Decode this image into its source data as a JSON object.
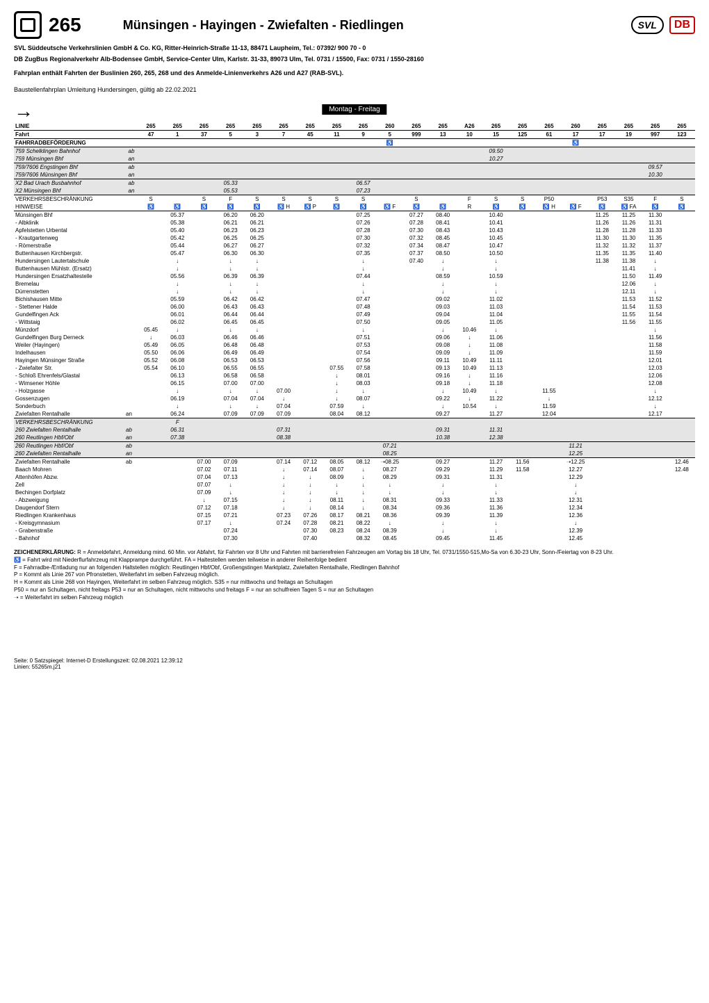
{
  "route_number": "265",
  "route_title": "Münsingen - Hayingen - Zwiefalten - Riedlingen",
  "operator_line1": "SVL Süddeutsche Verkehrslinien GmbH & Co. KG, Ritter-Heinrich-Straße 11-13, 88471 Laupheim, Tel.: 07392/ 900 70 - 0",
  "operator_line2": "DB ZugBus Regionalverkehr Alb-Bodensee GmbH, Service-Center Ulm, Karlstr. 31-33, 89073 Ulm, Tel. 0731 / 15500, Fax: 0731 / 1550-28160",
  "note_line": "Fahrplan enthält Fahrten der Buslinien 260, 265, 268 und des Anmelde-Linienverkehrs A26 und A27 (RAB-SVL).",
  "detour_line": "Baustellenfahrplan Umleitung Hundersingen, gültig ab 22.02.2021",
  "day_header": "Montag - Freitag",
  "line_row_label": "LINIE",
  "fahrt_row_label": "Fahrt",
  "fahrrad_row_label": "FAHRRADBEFÖRDERUNG",
  "verkehr_row_label": "VERKEHRSBESCHRÄNKUNG",
  "hinweise_row_label": "HINWEISE",
  "columns": {
    "line": [
      "265",
      "265",
      "265",
      "265",
      "265",
      "265",
      "265",
      "265",
      "265",
      "260",
      "265",
      "265",
      "A26",
      "265",
      "265",
      "265",
      "260",
      "265",
      "265",
      "265",
      "265"
    ],
    "fahrt": [
      "47",
      "1",
      "37",
      "5",
      "3",
      "7",
      "45",
      "11",
      "9",
      "5",
      "999",
      "13",
      "10",
      "15",
      "125",
      "61",
      "17",
      "17",
      "19",
      "997",
      "123"
    ],
    "bike": [
      "",
      "",
      "",
      "",
      "",
      "",
      "",
      "",
      "",
      "♿",
      "",
      "",
      "",
      "",
      "",
      "",
      "♿",
      "",
      "",
      "",
      ""
    ],
    "verkehr": [
      "S",
      "",
      "S",
      "F",
      "S",
      "S",
      "S",
      "S",
      "S",
      "",
      "S",
      "",
      "F",
      "S",
      "S",
      "P50",
      "",
      "P53",
      "S35",
      "F",
      "S"
    ],
    "hinweise": [
      "♿",
      "♿",
      "♿",
      "♿",
      "♿",
      "♿ H",
      "♿ P",
      "♿",
      "♿",
      "♿ F",
      "♿",
      "♿",
      "R",
      "♿",
      "♿",
      "♿ H",
      "♿ F",
      "♿",
      "♿ FA",
      "♿",
      "♿"
    ]
  },
  "greyblocks": {
    "schelklingen": {
      "stop": "759 Schelklingen Bahnhof",
      "ab": "ab",
      "c13": "09.50"
    },
    "muensingen759": {
      "stop": "759 Münsingen Bhf",
      "ab": "an",
      "c13": "10.27"
    },
    "engstingen": {
      "stop": "759/7606 Engstingen Bhf",
      "ab": "ab",
      "c19": "09.57"
    },
    "muensingen7606": {
      "stop": "759/7606 Münsingen Bhf",
      "ab": "an",
      "c19": "10.30"
    },
    "x2badurach": {
      "stop": "X2 Bad Urach Busbahnhof",
      "ab": "ab",
      "c3": "05.33",
      "c8": "06.57"
    },
    "x2muensingen": {
      "stop": "X2 Münsingen Bhf",
      "ab": "an",
      "c3": "05.53",
      "c8": "07.23"
    }
  },
  "stops": [
    {
      "name": "Münsingen Bhf",
      "t": [
        "",
        "05.37",
        "",
        "06.20",
        "06.20",
        "",
        "",
        "",
        "07.25",
        "",
        "07.27",
        "08.40",
        "",
        "10.40",
        "",
        "",
        "",
        "11.25",
        "11.25",
        "11.30",
        ""
      ]
    },
    {
      "name": "- Albklinik",
      "t": [
        "",
        "05.38",
        "",
        "06.21",
        "06.21",
        "",
        "",
        "",
        "07.26",
        "",
        "07.28",
        "08.41",
        "",
        "10.41",
        "",
        "",
        "",
        "11.26",
        "11.26",
        "11.31",
        ""
      ]
    },
    {
      "name": "Apfelstetten Urbental",
      "t": [
        "",
        "05.40",
        "",
        "06.23",
        "06.23",
        "",
        "",
        "",
        "07.28",
        "",
        "07.30",
        "08.43",
        "",
        "10.43",
        "",
        "",
        "",
        "11.28",
        "11.28",
        "11.33",
        ""
      ]
    },
    {
      "name": "- Krautgartenweg",
      "t": [
        "",
        "05.42",
        "",
        "06.25",
        "06.25",
        "",
        "",
        "",
        "07.30",
        "",
        "07.32",
        "08.45",
        "",
        "10.45",
        "",
        "",
        "",
        "11.30",
        "11.30",
        "11.35",
        ""
      ]
    },
    {
      "name": "- Römerstraße",
      "t": [
        "",
        "05.44",
        "",
        "06.27",
        "06.27",
        "",
        "",
        "",
        "07.32",
        "",
        "07.34",
        "08.47",
        "",
        "10.47",
        "",
        "",
        "",
        "11.32",
        "11.32",
        "11.37",
        ""
      ]
    },
    {
      "name": "Buttenhausen Kirchbergstr.",
      "t": [
        "",
        "05.47",
        "",
        "06.30",
        "06.30",
        "",
        "",
        "",
        "07.35",
        "",
        "07.37",
        "08.50",
        "",
        "10.50",
        "",
        "",
        "",
        "11.35",
        "11.35",
        "11.40",
        ""
      ]
    },
    {
      "name": "Hundersingen Lautertalschule",
      "t": [
        "",
        "↓",
        "",
        "↓",
        "↓",
        "",
        "",
        "",
        "↓",
        "",
        "07.40",
        "↓",
        "",
        "↓",
        "",
        "",
        "",
        "11.38",
        "11.38",
        "↓",
        ""
      ]
    },
    {
      "name": "Buttenhausen Mühlstr. (Ersatz)",
      "t": [
        "",
        "↓",
        "",
        "↓",
        "↓",
        "",
        "",
        "",
        "↓",
        "",
        "",
        "↓",
        "",
        "↓",
        "",
        "",
        "",
        "",
        "11.41",
        "↓",
        ""
      ]
    },
    {
      "name": "Hundersingen Ersatzhaltestelle",
      "t": [
        "",
        "05.56",
        "",
        "06.39",
        "06.39",
        "",
        "",
        "",
        "07.44",
        "",
        "",
        "08.59",
        "",
        "10.59",
        "",
        "",
        "",
        "",
        "11.50",
        "11.49",
        ""
      ]
    },
    {
      "name": "Bremelau",
      "t": [
        "",
        "↓",
        "",
        "↓",
        "↓",
        "",
        "",
        "",
        "↓",
        "",
        "",
        "↓",
        "",
        "↓",
        "",
        "",
        "",
        "",
        "12.06",
        "↓",
        ""
      ]
    },
    {
      "name": "Dürrenstetten",
      "t": [
        "",
        "↓",
        "",
        "↓",
        "↓",
        "",
        "",
        "",
        "↓",
        "",
        "",
        "↓",
        "",
        "↓",
        "",
        "",
        "",
        "",
        "12.11",
        "↓",
        ""
      ]
    },
    {
      "name": "Bichishausen Mitte",
      "t": [
        "",
        "05.59",
        "",
        "06.42",
        "06.42",
        "",
        "",
        "",
        "07.47",
        "",
        "",
        "09.02",
        "",
        "11.02",
        "",
        "",
        "",
        "",
        "11.53",
        "11.52",
        ""
      ]
    },
    {
      "name": "- Stettener Halde",
      "t": [
        "",
        "06.00",
        "",
        "06.43",
        "06.43",
        "",
        "",
        "",
        "07.48",
        "",
        "",
        "09.03",
        "",
        "11.03",
        "",
        "",
        "",
        "",
        "11.54",
        "11.53",
        ""
      ]
    },
    {
      "name": "Gundelfingen Ack",
      "t": [
        "",
        "06.01",
        "",
        "06.44",
        "06.44",
        "",
        "",
        "",
        "07.49",
        "",
        "",
        "09.04",
        "",
        "11.04",
        "",
        "",
        "",
        "",
        "11.55",
        "11.54",
        ""
      ]
    },
    {
      "name": "- Wittstaig",
      "t": [
        "",
        "06.02",
        "",
        "06.45",
        "06.45",
        "",
        "",
        "",
        "07.50",
        "",
        "",
        "09.05",
        "",
        "11.05",
        "",
        "",
        "",
        "",
        "11.56",
        "11.55",
        ""
      ]
    },
    {
      "name": "Münzdorf",
      "t": [
        "05.45",
        "↓",
        "",
        "↓",
        "↓",
        "",
        "",
        "",
        "↓",
        "",
        "",
        "↓",
        "10.46",
        "↓",
        "",
        "",
        "",
        "",
        "",
        "↓",
        ""
      ]
    },
    {
      "name": "Gundelfingen Burg Derneck",
      "t": [
        "↓",
        "06.03",
        "",
        "06.46",
        "06.46",
        "",
        "",
        "",
        "07.51",
        "",
        "",
        "09.06",
        "↓",
        "11.06",
        "",
        "",
        "",
        "",
        "",
        "11.56",
        ""
      ]
    },
    {
      "name": "Weiler (Hayingen)",
      "t": [
        "05.49",
        "06.05",
        "",
        "06.48",
        "06.48",
        "",
        "",
        "",
        "07.53",
        "",
        "",
        "09.08",
        "↓",
        "11.08",
        "",
        "",
        "",
        "",
        "",
        "11.58",
        ""
      ]
    },
    {
      "name": "Indelhausen",
      "t": [
        "05.50",
        "06.06",
        "",
        "06.49",
        "06.49",
        "",
        "",
        "",
        "07.54",
        "",
        "",
        "09.09",
        "↓",
        "11.09",
        "",
        "",
        "",
        "",
        "",
        "11.59",
        ""
      ]
    },
    {
      "name": "Hayingen Münsinger Straße",
      "t": [
        "05.52",
        "06.08",
        "",
        "06.53",
        "06.53",
        "",
        "",
        "",
        "07.56",
        "",
        "",
        "09.11",
        "10.49",
        "11.11",
        "",
        "",
        "",
        "",
        "",
        "12.01",
        ""
      ]
    },
    {
      "name": "- Zwiefalter Str.",
      "t": [
        "05.54",
        "06.10",
        "",
        "06.55",
        "06.55",
        "",
        "",
        "07.55",
        "07.58",
        "",
        "",
        "09.13",
        "10.49",
        "11.13",
        "",
        "",
        "",
        "",
        "",
        "12.03",
        ""
      ]
    },
    {
      "name": "- Schloß Ehrenfels/Glastal",
      "t": [
        "",
        "06.13",
        "",
        "06.58",
        "06.58",
        "",
        "",
        "↓",
        "08.01",
        "",
        "",
        "09.16",
        "↓",
        "11.16",
        "",
        "",
        "",
        "",
        "",
        "12.06",
        ""
      ]
    },
    {
      "name": "- Wimsener Höhle",
      "t": [
        "",
        "06.15",
        "",
        "07.00",
        "07.00",
        "",
        "",
        "↓",
        "08.03",
        "",
        "",
        "09.18",
        "↓",
        "11.18",
        "",
        "",
        "",
        "",
        "",
        "12.08",
        ""
      ]
    },
    {
      "name": "- Holzgasse",
      "t": [
        "",
        "↓",
        "",
        "↓",
        "↓",
        "07.00",
        "",
        "↓",
        "↓",
        "",
        "",
        "↓",
        "10.49",
        "↓",
        "",
        "11.55",
        "",
        "",
        "",
        "↓",
        ""
      ]
    },
    {
      "name": "Gossenzugen",
      "t": [
        "",
        "06.19",
        "",
        "07.04",
        "07.04",
        "↓",
        "",
        "↓",
        "08.07",
        "",
        "",
        "09.22",
        "↓",
        "11.22",
        "",
        "↓",
        "",
        "",
        "",
        "12.12",
        ""
      ]
    },
    {
      "name": "Sonderbuch",
      "t": [
        "",
        "↓",
        "",
        "↓",
        "↓",
        "07.04",
        "",
        "07.59",
        "↓",
        "",
        "",
        "↓",
        "10.54",
        "↓",
        "",
        "11.59",
        "",
        "",
        "",
        "↓",
        ""
      ]
    },
    {
      "name": "Zwiefalten Rentalhalle",
      "ab": "an",
      "t": [
        "",
        "06.24",
        "",
        "07.09",
        "07.09",
        "07.09",
        "",
        "08.04",
        "08.12",
        "",
        "",
        "09.27",
        "",
        "11.27",
        "",
        "12.04",
        "",
        "",
        "",
        "12.17",
        ""
      ]
    }
  ],
  "grey_midblock": {
    "rows": [
      {
        "name": "VERKEHRSBESCHRÄNKUNG",
        "t": [
          "",
          "F",
          "",
          "",
          "",
          "",
          "",
          "",
          "",
          "",
          "",
          "",
          "",
          "",
          "",
          "",
          "",
          "",
          "",
          "",
          ""
        ],
        "italic": true
      },
      {
        "name": "260 Zwiefalten Rentalhalle",
        "ab": "ab",
        "t": [
          "",
          "06.31",
          "",
          "",
          "",
          "07.31",
          "",
          "",
          "",
          "",
          "",
          "09.31",
          "",
          "11.31",
          "",
          "",
          "",
          "",
          "",
          "",
          ""
        ],
        "italic": true
      },
      {
        "name": "260 Reutlingen Hbf/Obf",
        "ab": "an",
        "t": [
          "",
          "07.38",
          "",
          "",
          "",
          "08.38",
          "",
          "",
          "",
          "",
          "",
          "10.38",
          "",
          "12.38",
          "",
          "",
          "",
          "",
          "",
          "",
          ""
        ],
        "italic": true
      }
    ],
    "rows2": [
      {
        "name": "260 Reutlingen Hbf/Obf",
        "ab": "ab",
        "t": [
          "",
          "",
          "",
          "",
          "",
          "",
          "",
          "",
          "",
          "07.21",
          "",
          "",
          "",
          "",
          "",
          "",
          "11.21",
          "",
          "",
          "",
          ""
        ],
        "italic": true
      },
      {
        "name": "260 Zwiefalten Rentalhalle",
        "ab": "an",
        "t": [
          "",
          "",
          "",
          "",
          "",
          "",
          "",
          "",
          "",
          "08.25",
          "",
          "",
          "",
          "",
          "",
          "",
          "12.25",
          "",
          "",
          "",
          ""
        ],
        "italic": true
      }
    ]
  },
  "stops2": [
    {
      "name": "Zwiefalten Rentalhalle",
      "ab": "ab",
      "t": [
        "",
        "",
        "07.00",
        "07.09",
        "",
        "07.14",
        "07.12",
        "08.05",
        "08.12",
        "➝08.25",
        "",
        "09.27",
        "",
        "11.27",
        "11.56",
        "",
        "➝12.25",
        "",
        "",
        "",
        "12.46"
      ]
    },
    {
      "name": "Baach Mohren",
      "t": [
        "",
        "",
        "07.02",
        "07.11",
        "",
        "↓",
        "07.14",
        "08.07",
        "↓",
        "08.27",
        "",
        "09.29",
        "",
        "11.29",
        "11.58",
        "",
        "12.27",
        "",
        "",
        "",
        "12.48"
      ]
    },
    {
      "name": "Attenhöfen Abzw.",
      "t": [
        "",
        "",
        "07.04",
        "07.13",
        "",
        "↓",
        "↓",
        "08.09",
        "↓",
        "08.29",
        "",
        "09.31",
        "",
        "11.31",
        "",
        "",
        "12.29",
        "",
        "",
        "",
        ""
      ]
    },
    {
      "name": "Zell",
      "t": [
        "",
        "",
        "07.07",
        "↓",
        "",
        "↓",
        "↓",
        "↓",
        "↓",
        "↓",
        "",
        "↓",
        "",
        "↓",
        "",
        "",
        "↓",
        "",
        "",
        "",
        ""
      ]
    },
    {
      "name": "Bechingen Dorfplatz",
      "t": [
        "",
        "",
        "07.09",
        "↓",
        "",
        "↓",
        "↓",
        "↓",
        "↓",
        "↓",
        "",
        "↓",
        "",
        "↓",
        "",
        "",
        "↓",
        "",
        "",
        "",
        ""
      ]
    },
    {
      "name": "- Abzweigung",
      "t": [
        "",
        "",
        "↓",
        "07.15",
        "",
        "↓",
        "↓",
        "08.11",
        "↓",
        "08.31",
        "",
        "09.33",
        "",
        "11.33",
        "",
        "",
        "12.31",
        "",
        "",
        "",
        ""
      ]
    },
    {
      "name": "Daugendorf Stern",
      "t": [
        "",
        "",
        "07.12",
        "07.18",
        "",
        "↓",
        "↓",
        "08.14",
        "↓",
        "08.34",
        "",
        "09.36",
        "",
        "11.36",
        "",
        "",
        "12.34",
        "",
        "",
        "",
        ""
      ]
    },
    {
      "name": "Riedlingen Krankenhaus",
      "t": [
        "",
        "",
        "07.15",
        "07.21",
        "",
        "07.23",
        "07.26",
        "08.17",
        "08.21",
        "08.36",
        "",
        "09.39",
        "",
        "11.39",
        "",
        "",
        "12.36",
        "",
        "",
        "",
        ""
      ]
    },
    {
      "name": "- Kreisgymnasium",
      "t": [
        "",
        "",
        "07.17",
        "↓",
        "",
        "07.24",
        "07.28",
        "08.21",
        "08.22",
        "↓",
        "",
        "↓",
        "",
        "↓",
        "",
        "",
        "↓",
        "",
        "",
        "",
        ""
      ]
    },
    {
      "name": "- Grabenstraße",
      "t": [
        "",
        "",
        "",
        "07.24",
        "",
        "",
        "07.30",
        "08.23",
        "08.24",
        "08.39",
        "",
        "↓",
        "",
        "↓",
        "",
        "",
        "12.39",
        "",
        "",
        "",
        ""
      ]
    },
    {
      "name": "- Bahnhof",
      "t": [
        "",
        "",
        "",
        "07.30",
        "",
        "",
        "07.40",
        "",
        "08.32",
        "08.45",
        "",
        "09.45",
        "",
        "11.45",
        "",
        "",
        "12.45",
        "",
        "",
        "",
        ""
      ]
    }
  ],
  "legend_title": "ZEICHENERKLÄRUNG:",
  "legend_lines": [
    "R = Anmeldefahrt, Anmeldung mind. 60 Min. vor Abfahrt, für Fahrten vor 8 Uhr und Fahrten mit barrierefreien Fahrzeugen am Vortag bis 18 Uhr, Tel. 0731/1550-515,Mo-Sa von 6.30-23 Uhr, Sonn-/Feiertag von 8-23 Uhr.",
    "♿ = Fahrt wird mit Niederflurfahrzeug mit Klapprampe durchgeführt.  FA = Haltestellen werden teilweise in anderer Reihenfolge bedient",
    "F = Fahrradbe-/Entladung nur an folgenden Haltstellen möglich: Reutlingen Hbf/Obf, Großengstingen Marktplatz, Zwiefalten Rentalhalle, Riedlingen Bahnhof",
    "P = Kommt als Linie 267 von Pfronstetten, Weiterfahrt im selben Fahrzeug möglich.",
    "H = Kommt als Linie 268 von Hayingen, Weiterfahrt im selben Fahrzeug möglich.  S35 = nur mittwochs und freitags an Schultagen",
    "P50 = nur an Schultagen, nicht freitags  P53 = nur an Schultagen, nicht mittwochs und freitags  F = nur an schulfreien Tagen  S = nur an Schultagen",
    "➝ = Weiterfahrt im selben Fahrzeug möglich"
  ],
  "footer_left": "Seite: 0   Satzspiegel: Internet-D   Erstellungszeit: 02.08.2021 12:39:12",
  "footer_left2": "Linien: 55265m.j21"
}
